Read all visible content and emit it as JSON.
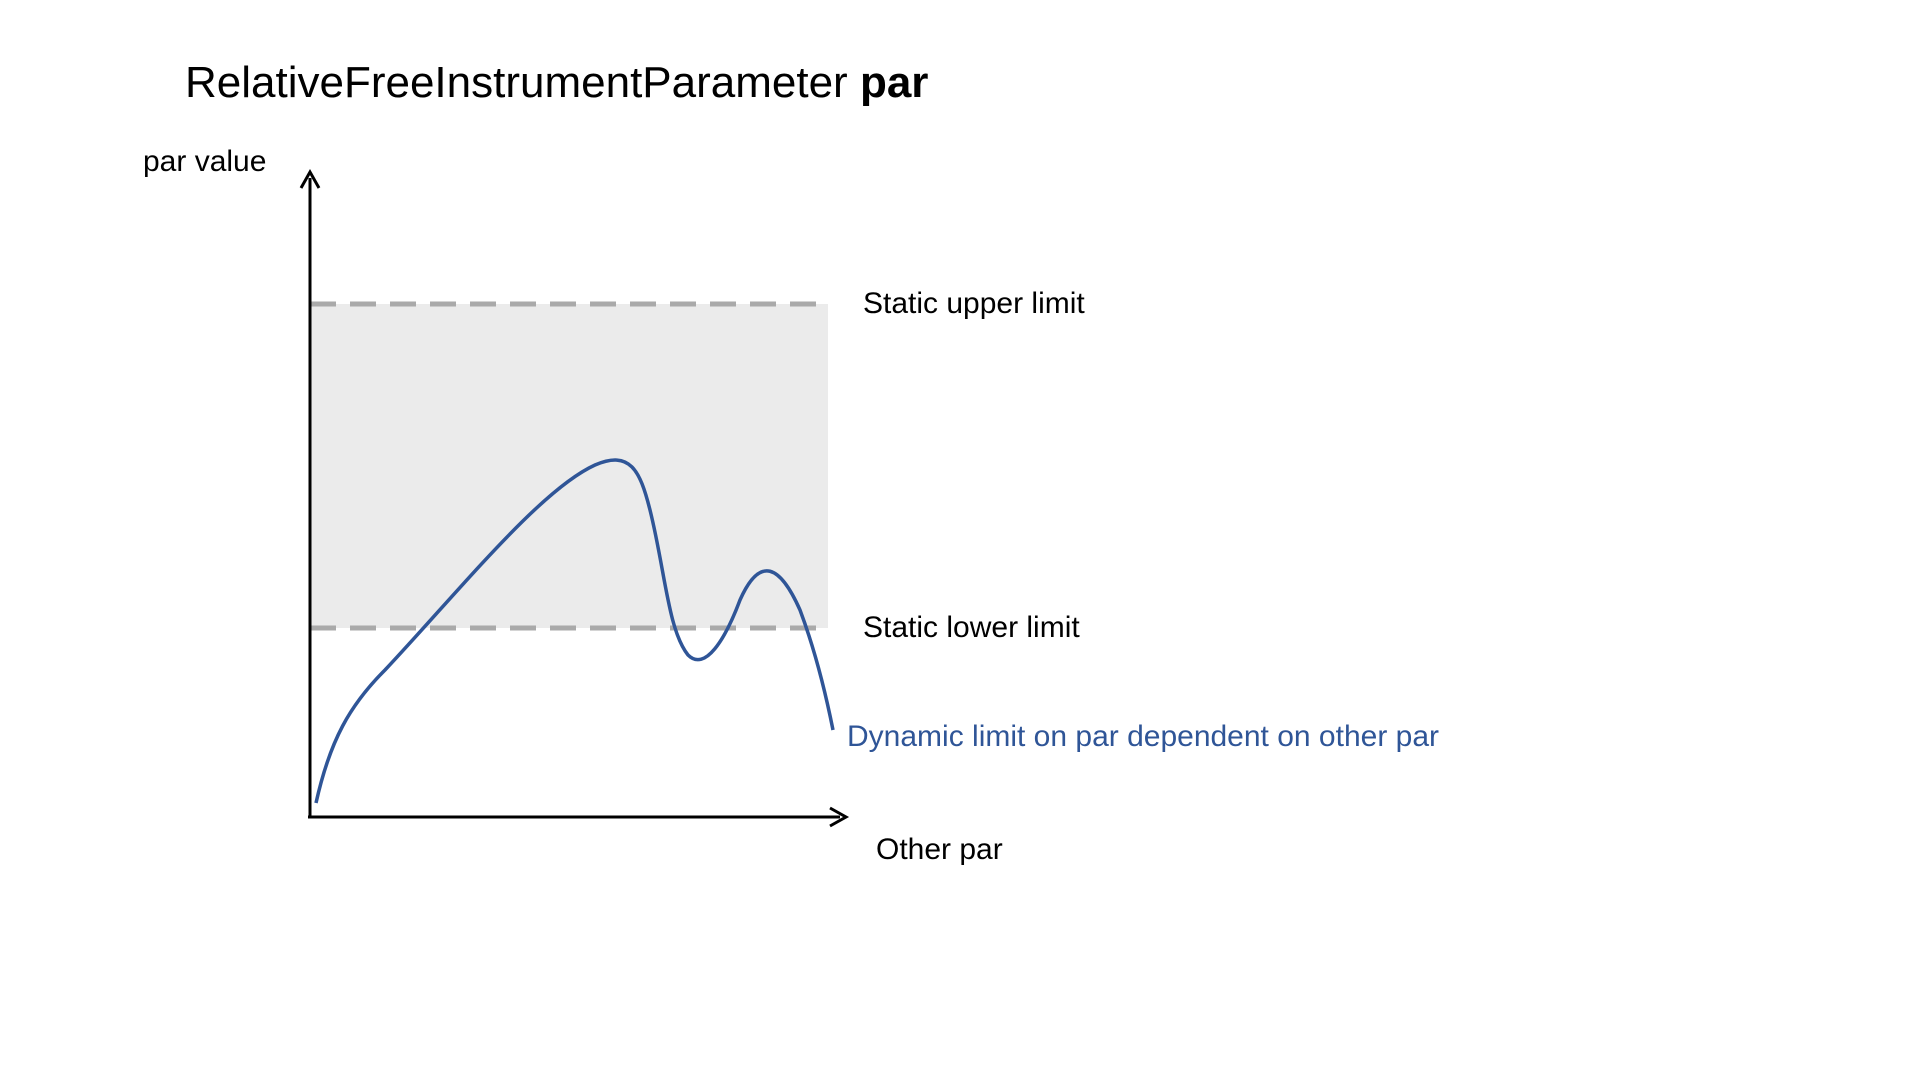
{
  "title": {
    "prefix": "RelativeFreeInstrumentParameter",
    "bold_word": "par"
  },
  "axes": {
    "y_label": "par value",
    "x_label": "Other par"
  },
  "limits": {
    "upper_label": "Static upper limit",
    "lower_label": "Static lower limit",
    "dashed_color": "#aaaaaa",
    "band_color": "#ebebeb"
  },
  "curve": {
    "label": "Dynamic limit on par dependent on other par",
    "color": "#2f5597"
  }
}
